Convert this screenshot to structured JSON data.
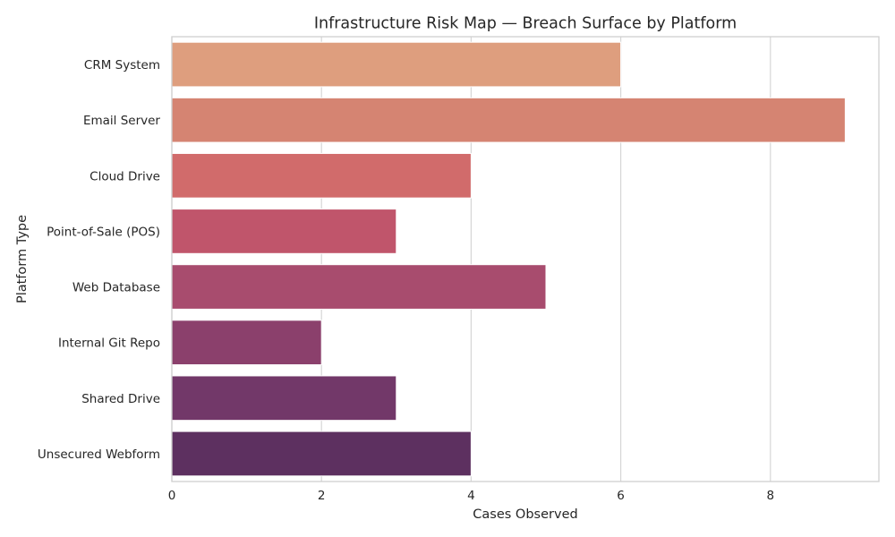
{
  "chart_data": {
    "type": "bar",
    "orientation": "horizontal",
    "title": "Infrastructure Risk Map — Breach Surface by Platform",
    "xlabel": "Cases Observed",
    "ylabel": "Platform Type",
    "categories": [
      "CRM System",
      "Email Server",
      "Cloud Drive",
      "Point-of-Sale (POS)",
      "Web Database",
      "Internal Git Repo",
      "Shared Drive",
      "Unsecured Webform"
    ],
    "values": [
      6,
      9,
      4,
      3,
      5,
      2,
      3,
      4
    ],
    "colors": [
      "#de9e7e",
      "#d58472",
      "#d16b6b",
      "#c0556b",
      "#a84c6e",
      "#8b406c",
      "#723869",
      "#5d3060"
    ],
    "xlim": [
      0,
      9.45
    ],
    "xticks": [
      0,
      2,
      4,
      6,
      8
    ],
    "grid": true,
    "legend": false
  }
}
